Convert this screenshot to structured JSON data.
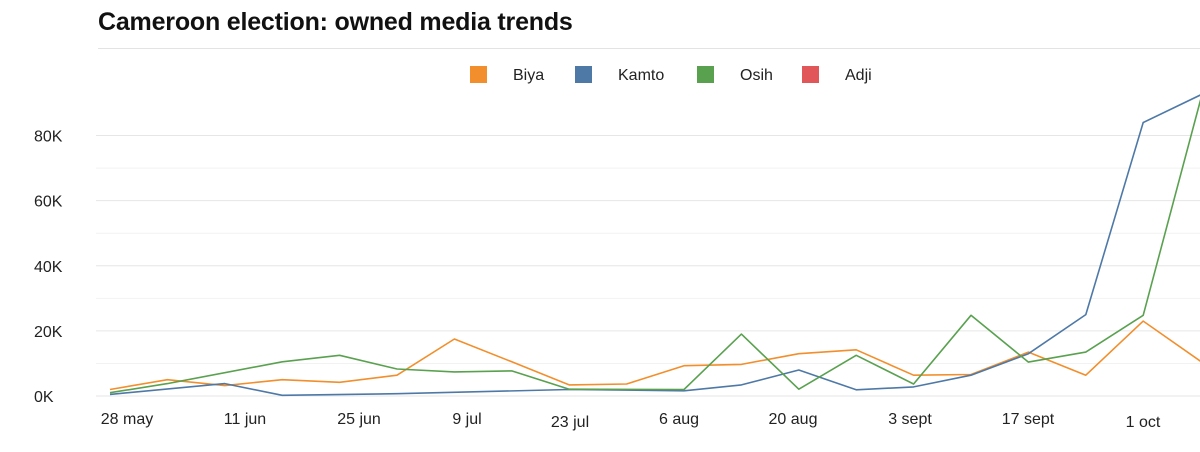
{
  "title": "Cameroon election: owned media trends",
  "chart_data": {
    "type": "line",
    "title": "Cameroon election: owned media trends",
    "xlabel": "",
    "ylabel": "",
    "ylim": [
      0,
      90000
    ],
    "yticks": [
      0,
      20000,
      40000,
      60000,
      80000
    ],
    "ytick_labels": [
      "0K",
      "20K",
      "40K",
      "60K",
      "80K"
    ],
    "x_tick_labels": [
      "28 may",
      "11 jun",
      "25 jun",
      "9 jul",
      "23 jul",
      "6 aug",
      "20 aug",
      "3 sept",
      "17 sept",
      "1 oct"
    ],
    "x_range": [
      0,
      19.5
    ],
    "legend_position": "top-center",
    "series": [
      {
        "name": "Biya",
        "color": "#f28e2b",
        "points": [
          [
            0,
            2000
          ],
          [
            1,
            5000
          ],
          [
            2,
            3200
          ],
          [
            3,
            5000
          ],
          [
            4,
            4200
          ],
          [
            5,
            6400
          ],
          [
            6,
            17500
          ],
          [
            7,
            10500
          ],
          [
            8,
            3400
          ],
          [
            9,
            3700
          ],
          [
            10,
            9300
          ],
          [
            11,
            9700
          ],
          [
            12,
            13000
          ],
          [
            13,
            14200
          ],
          [
            14,
            6400
          ],
          [
            15,
            6600
          ],
          [
            16,
            13500
          ],
          [
            17,
            6400
          ],
          [
            18,
            23000
          ],
          [
            19.5,
            4500
          ]
        ]
      },
      {
        "name": "Kamto",
        "color": "#4e79a7",
        "points": [
          [
            0,
            500
          ],
          [
            2,
            3800
          ],
          [
            3,
            200
          ],
          [
            5,
            700
          ],
          [
            8,
            2000
          ],
          [
            10,
            1600
          ],
          [
            11,
            3400
          ],
          [
            12,
            8000
          ],
          [
            13,
            1900
          ],
          [
            14,
            2800
          ],
          [
            15,
            6400
          ],
          [
            16,
            13000
          ],
          [
            17,
            25000
          ],
          [
            18,
            84000
          ],
          [
            19,
            92500
          ]
        ]
      },
      {
        "name": "Osih",
        "color": "#59a14f",
        "points": [
          [
            0,
            1000
          ],
          [
            1,
            3800
          ],
          [
            3,
            10500
          ],
          [
            4,
            12500
          ],
          [
            5,
            8300
          ],
          [
            6,
            7400
          ],
          [
            7,
            7700
          ],
          [
            8,
            2100
          ],
          [
            10,
            2000
          ],
          [
            11,
            19000
          ],
          [
            12,
            2100
          ],
          [
            13,
            12500
          ],
          [
            14,
            3700
          ],
          [
            15,
            24800
          ],
          [
            16,
            10400
          ],
          [
            17,
            13500
          ],
          [
            18,
            24800
          ],
          [
            19,
            91000
          ]
        ]
      },
      {
        "name": "Adji",
        "color": "#e15759",
        "points": []
      }
    ]
  }
}
